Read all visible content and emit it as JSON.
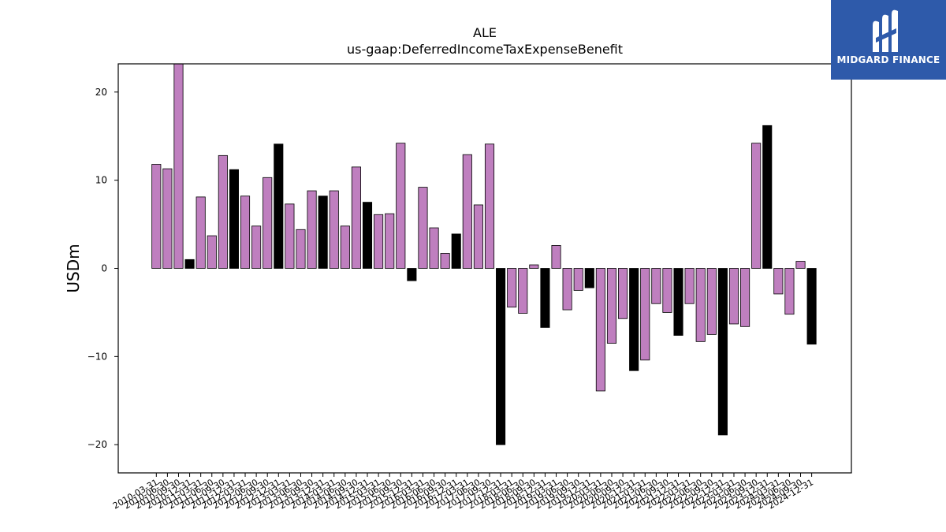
{
  "chart_data": {
    "type": "bar",
    "title": "ALE",
    "subtitle": "us-gaap:DeferredIncomeTaxExpenseBenefit",
    "xlabel": "",
    "ylabel": "USDm",
    "ylim": [
      -23.2,
      23.2
    ],
    "yticks": [
      -20,
      -10,
      0,
      10,
      20
    ],
    "ytick_labels": [
      "−20",
      "−10",
      "0",
      "10",
      "20"
    ],
    "grid": false,
    "colors": {
      "quarter": "#bf7fbf",
      "annual": "#000000",
      "edge": "#000000"
    },
    "categories": [
      "2010-03-31",
      "2010-06-30",
      "2010-09-30",
      "2010-12-31",
      "2011-03-31",
      "2011-06-30",
      "2011-09-30",
      "2011-12-31",
      "2012-03-31",
      "2012-06-30",
      "2012-09-30",
      "2012-12-31",
      "2013-03-31",
      "2013-06-30",
      "2013-09-30",
      "2013-12-31",
      "2014-03-31",
      "2014-06-30",
      "2014-09-30",
      "2014-12-31",
      "2015-03-31",
      "2015-06-30",
      "2015-09-30",
      "2015-12-31",
      "2016-03-31",
      "2016-06-30",
      "2016-09-30",
      "2016-12-31",
      "2017-03-31",
      "2017-06-30",
      "2017-09-30",
      "2017-12-31",
      "2018-03-31",
      "2018-06-30",
      "2018-09-30",
      "2018-12-31",
      "2019-03-31",
      "2019-06-30",
      "2019-09-30",
      "2019-12-31",
      "2020-03-31",
      "2020-06-30",
      "2020-09-30",
      "2020-12-31",
      "2021-03-31",
      "2021-06-30",
      "2021-09-30",
      "2021-12-31",
      "2022-03-31",
      "2022-06-30",
      "2022-09-30",
      "2022-12-31",
      "2023-03-31",
      "2023-06-30",
      "2023-09-30",
      "2023-12-31",
      "2024-03-31",
      "2024-06-30",
      "2024-09-30",
      "2024-12-31"
    ],
    "values": [
      11.8,
      11.3,
      23.5,
      1.0,
      8.1,
      3.7,
      12.8,
      11.2,
      8.2,
      4.8,
      10.3,
      14.1,
      7.3,
      4.4,
      8.8,
      8.2,
      8.8,
      4.8,
      11.5,
      7.5,
      6.1,
      6.2,
      14.2,
      -1.4,
      9.2,
      4.6,
      1.7,
      3.9,
      12.9,
      7.2,
      14.1,
      -20.0,
      -4.4,
      -5.1,
      0.4,
      -6.7,
      2.6,
      -4.7,
      -2.5,
      -2.2,
      -13.9,
      -8.5,
      -5.7,
      -11.6,
      -10.4,
      -4.0,
      -5.0,
      -7.6,
      -4.0,
      -8.3,
      -7.5,
      -18.9,
      -6.3,
      -6.6,
      14.2,
      16.2,
      -2.9,
      -5.2,
      0.8,
      -8.6
    ]
  },
  "logo": {
    "text": "MIDGARD FINANCE",
    "icon": "midgard-logo-mark"
  }
}
